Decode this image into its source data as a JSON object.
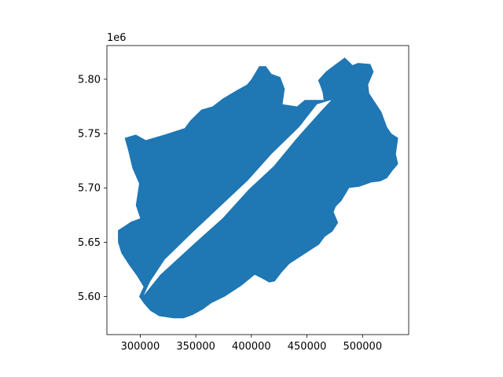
{
  "chart_data": {
    "type": "polygon",
    "title": "",
    "xlabel": "",
    "ylabel": "",
    "xlim": [
      270000,
      541500
    ],
    "ylim": [
      5565000,
      5831000
    ],
    "x_ticks": [
      300000,
      350000,
      400000,
      450000,
      500000
    ],
    "x_tick_labels": [
      "300000",
      "350000",
      "400000",
      "450000",
      "500000"
    ],
    "y_ticks": [
      5.6,
      5.65,
      5.7,
      5.75,
      5.8
    ],
    "y_tick_labels": [
      "5.60",
      "5.65",
      "5.70",
      "5.75",
      "5.80"
    ],
    "y_offset_label": "1e6",
    "grid": false,
    "fill_color": "#1f77b4",
    "outline": [
      [
        280000,
        5661000
      ],
      [
        292000,
        5669000
      ],
      [
        300000,
        5672000
      ],
      [
        296000,
        5684000
      ],
      [
        299000,
        5704000
      ],
      [
        293000,
        5718000
      ],
      [
        289000,
        5735000
      ],
      [
        286000,
        5746000
      ],
      [
        296000,
        5749000
      ],
      [
        305000,
        5744000
      ],
      [
        322000,
        5749000
      ],
      [
        340000,
        5755000
      ],
      [
        345000,
        5762000
      ],
      [
        355000,
        5772000
      ],
      [
        365000,
        5775000
      ],
      [
        374000,
        5782000
      ],
      [
        387000,
        5790000
      ],
      [
        396000,
        5795000
      ],
      [
        400000,
        5800000
      ],
      [
        407000,
        5812000
      ],
      [
        413000,
        5812000
      ],
      [
        418000,
        5805000
      ],
      [
        426000,
        5802000
      ],
      [
        430000,
        5791000
      ],
      [
        428000,
        5777000
      ],
      [
        441000,
        5775000
      ],
      [
        448000,
        5781000
      ],
      [
        465000,
        5781000
      ],
      [
        464000,
        5788000
      ],
      [
        462000,
        5794000
      ],
      [
        460000,
        5799000
      ],
      [
        467000,
        5807000
      ],
      [
        472000,
        5811000
      ],
      [
        484000,
        5820000
      ],
      [
        491000,
        5813000
      ],
      [
        496000,
        5815000
      ],
      [
        507000,
        5814000
      ],
      [
        510000,
        5807000
      ],
      [
        505000,
        5795000
      ],
      [
        506000,
        5787000
      ],
      [
        517000,
        5770000
      ],
      [
        522000,
        5756000
      ],
      [
        526000,
        5750000
      ],
      [
        532000,
        5746000
      ],
      [
        530000,
        5731000
      ],
      [
        532000,
        5722000
      ],
      [
        527000,
        5716000
      ],
      [
        522000,
        5709000
      ],
      [
        516000,
        5706000
      ],
      [
        508000,
        5705000
      ],
      [
        497000,
        5701000
      ],
      [
        488000,
        5700000
      ],
      [
        481000,
        5688000
      ],
      [
        476000,
        5683000
      ],
      [
        474000,
        5678000
      ],
      [
        478000,
        5668000
      ],
      [
        473000,
        5660000
      ],
      [
        466000,
        5655000
      ],
      [
        461000,
        5648000
      ],
      [
        452000,
        5642000
      ],
      [
        443000,
        5636000
      ],
      [
        434000,
        5630000
      ],
      [
        427000,
        5622000
      ],
      [
        421000,
        5614000
      ],
      [
        416000,
        5613000
      ],
      [
        409000,
        5617000
      ],
      [
        403000,
        5620000
      ],
      [
        391000,
        5610000
      ],
      [
        376000,
        5600000
      ],
      [
        364000,
        5594000
      ],
      [
        356000,
        5588000
      ],
      [
        347000,
        5583000
      ],
      [
        339000,
        5580000
      ],
      [
        330000,
        5580000
      ],
      [
        317000,
        5582000
      ],
      [
        309000,
        5587000
      ],
      [
        303000,
        5594000
      ],
      [
        299000,
        5600000
      ],
      [
        303000,
        5609000
      ],
      [
        297000,
        5619000
      ],
      [
        290000,
        5629000
      ],
      [
        283000,
        5640000
      ],
      [
        280000,
        5650000
      ]
    ],
    "hole": [
      [
        303000,
        5601000
      ],
      [
        318000,
        5620000
      ],
      [
        350000,
        5650000
      ],
      [
        374000,
        5672000
      ],
      [
        398000,
        5699000
      ],
      [
        420000,
        5720000
      ],
      [
        441000,
        5746000
      ],
      [
        462000,
        5770000
      ],
      [
        472000,
        5781000
      ],
      [
        459000,
        5777000
      ],
      [
        443000,
        5756000
      ],
      [
        418000,
        5731000
      ],
      [
        397000,
        5707000
      ],
      [
        373000,
        5684000
      ],
      [
        347000,
        5659000
      ],
      [
        322000,
        5634000
      ],
      [
        309000,
        5614000
      ]
    ]
  }
}
